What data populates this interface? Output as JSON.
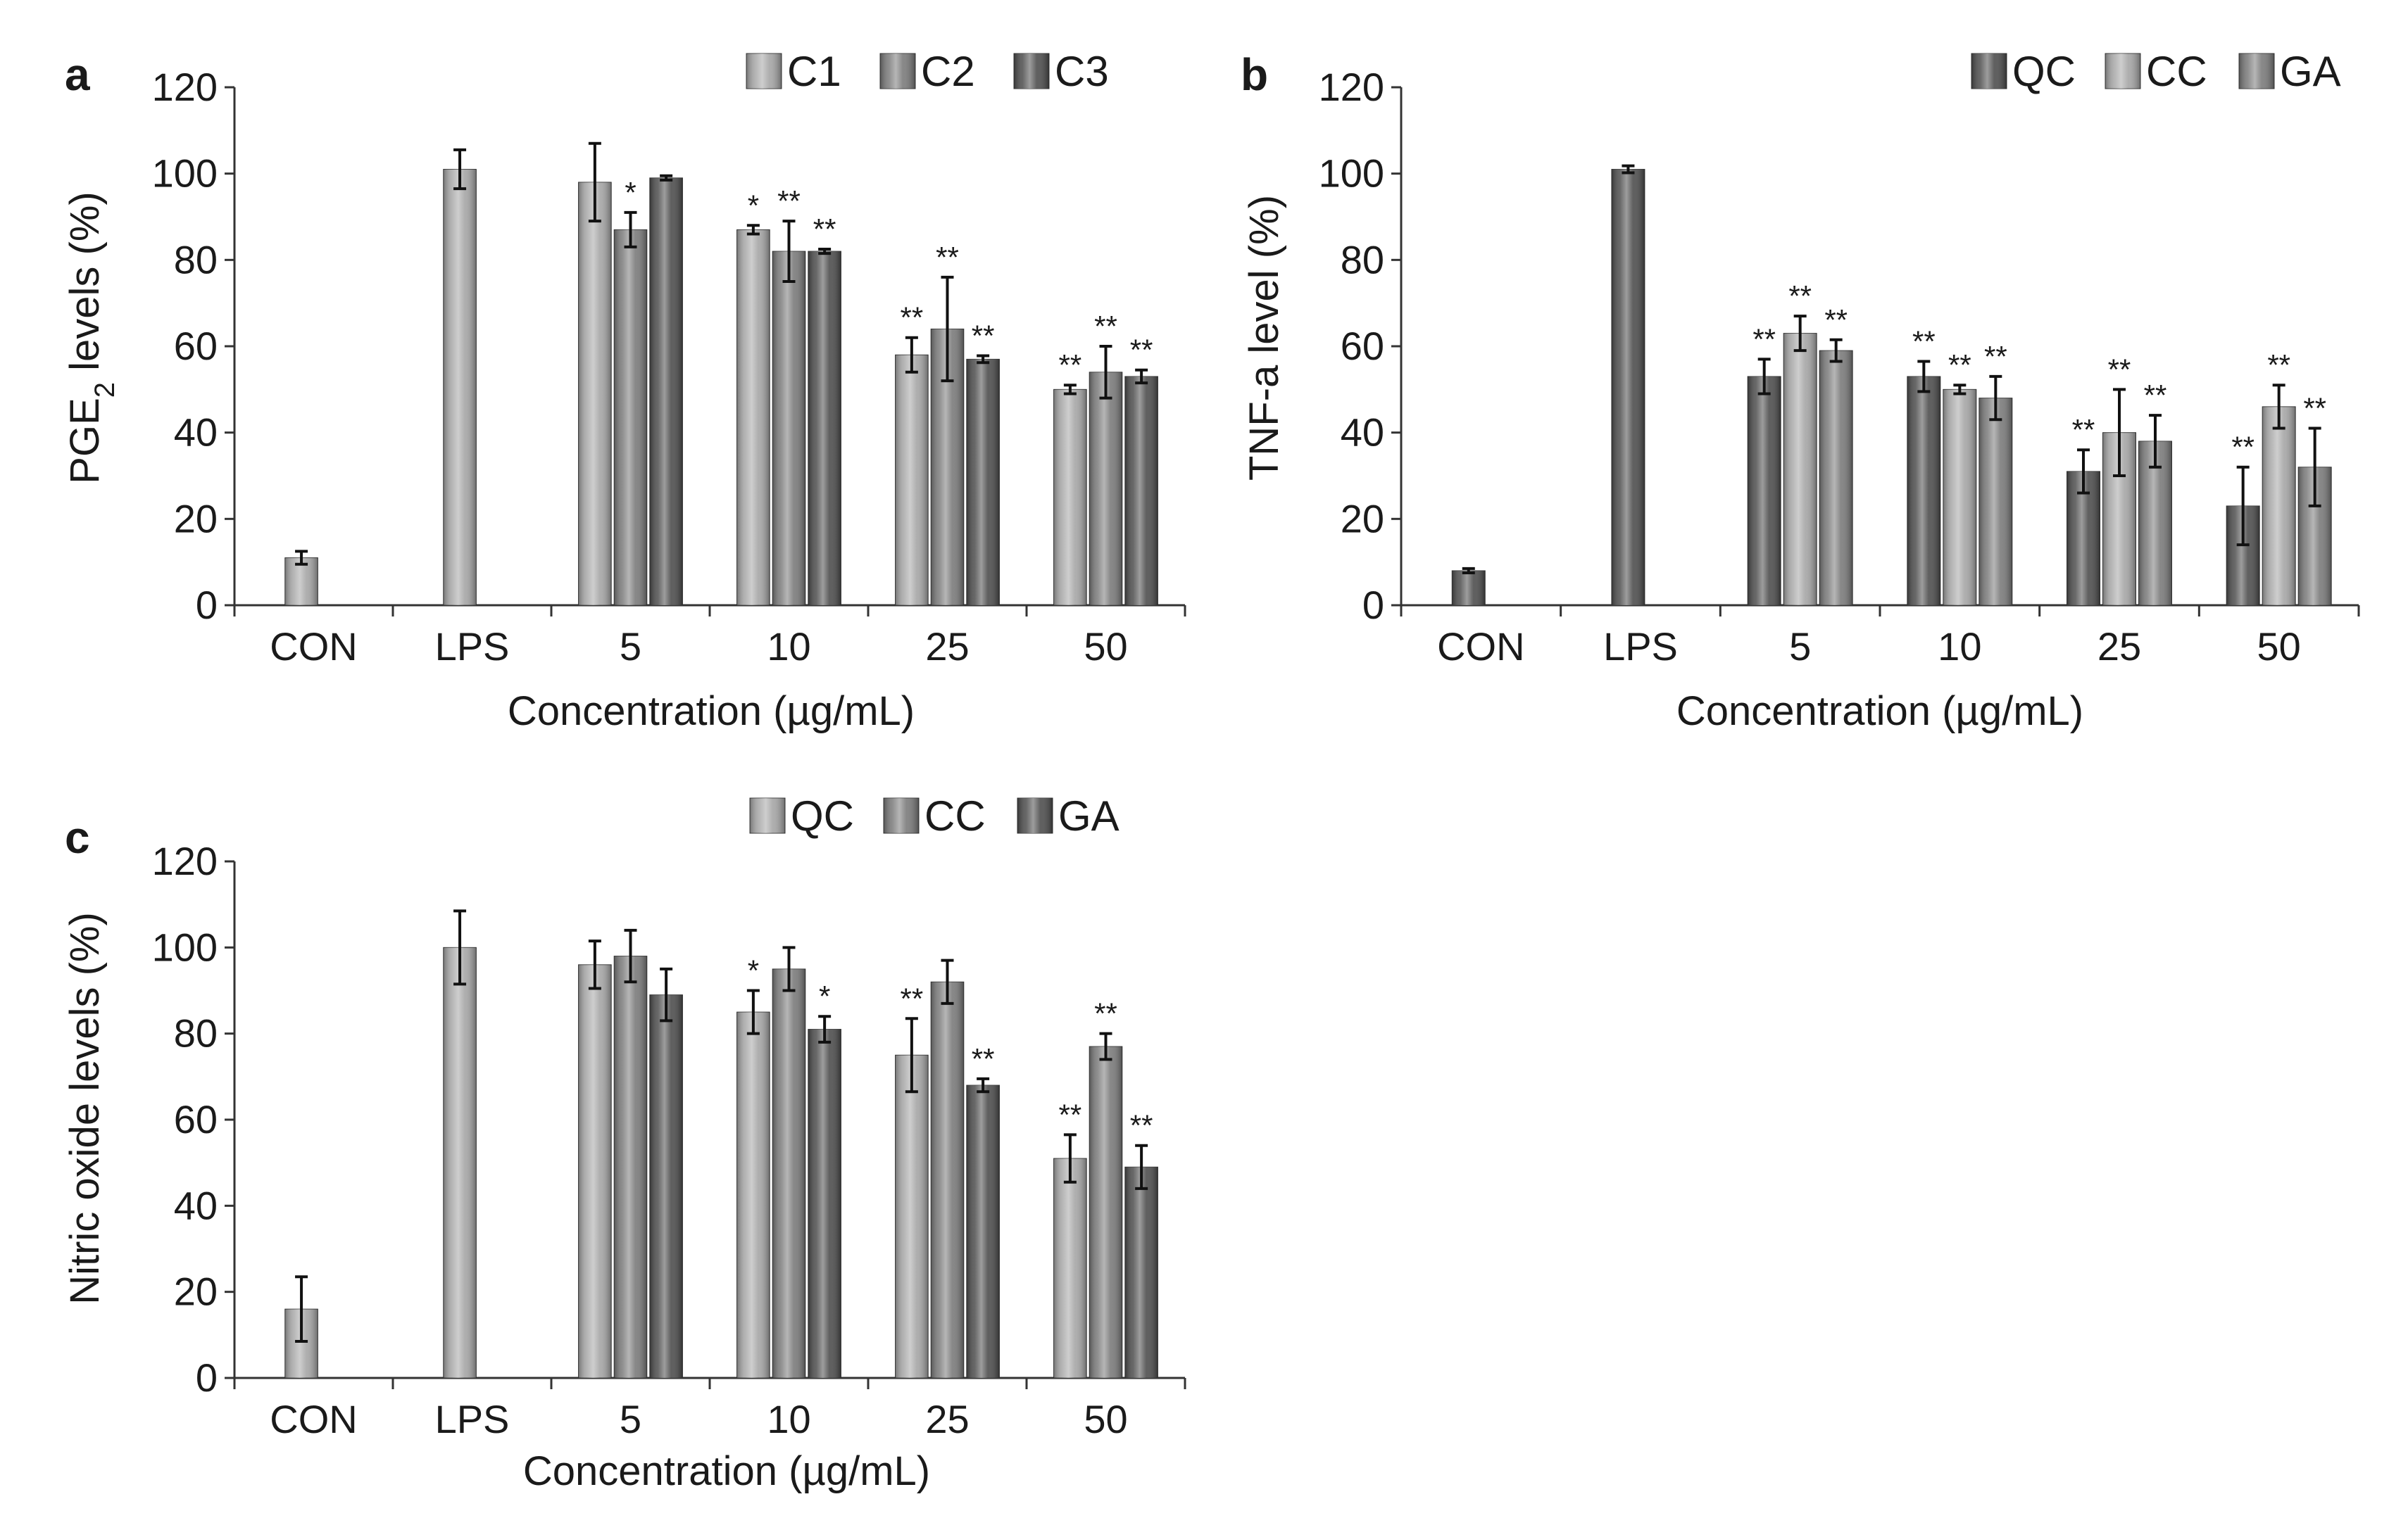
{
  "figure": {
    "panels": [
      {
        "letter": "a",
        "ylabel_main": "PGE",
        "ylabel_sub": "2",
        "ylabel_rest": " levels (%)",
        "xlabel": "Concentration (µg/mL)",
        "legend": [
          "C1",
          "C2",
          "C3"
        ]
      },
      {
        "letter": "b",
        "ylabel_main": "TNF-a level (%)",
        "ylabel_sub": "",
        "ylabel_rest": "",
        "xlabel": "Concentration (µg/mL)",
        "legend": [
          "QC",
          "CC",
          "GA"
        ]
      },
      {
        "letter": "c",
        "ylabel_main": "Nitric oxide levels (%)",
        "ylabel_sub": "",
        "ylabel_rest": "",
        "xlabel": "Concentration (µg/mL)",
        "legend": [
          "QC",
          "CC",
          "GA"
        ]
      }
    ]
  },
  "chart_data": [
    {
      "type": "bar",
      "panel": "a",
      "categories": [
        "CON",
        "LPS",
        "5",
        "10",
        "25",
        "50"
      ],
      "ylim": [
        0,
        120
      ],
      "yticks": [
        0,
        20,
        40,
        60,
        80,
        100,
        120
      ],
      "series": [
        {
          "name": "C1",
          "color": "#a6a6a6",
          "values": [
            11,
            101,
            98,
            87,
            58,
            50
          ],
          "errors": [
            1.5,
            4.5,
            9,
            1,
            4,
            1
          ],
          "stars": [
            "",
            "",
            "",
            "*",
            "**",
            "**"
          ]
        },
        {
          "name": "C2",
          "color": "#7a7a7a",
          "values": [
            null,
            null,
            87,
            82,
            64,
            54
          ],
          "errors": [
            null,
            null,
            4,
            7,
            12,
            6
          ],
          "stars": [
            "",
            "",
            "*",
            "**",
            "**",
            "**"
          ]
        },
        {
          "name": "C3",
          "color": "#4d4d4d",
          "values": [
            null,
            null,
            99,
            82,
            57,
            53
          ],
          "errors": [
            null,
            null,
            0.5,
            0.5,
            0.8,
            1.5
          ],
          "stars": [
            "",
            "",
            "",
            "**",
            "**",
            "**"
          ]
        }
      ]
    },
    {
      "type": "bar",
      "panel": "b",
      "categories": [
        "CON",
        "LPS",
        "5",
        "10",
        "25",
        "50"
      ],
      "ylim": [
        0,
        120
      ],
      "yticks": [
        0,
        20,
        40,
        60,
        80,
        100,
        120
      ],
      "series": [
        {
          "name": "QC",
          "color": "#4d4d4d",
          "values": [
            8,
            101,
            53,
            53,
            31,
            23
          ],
          "errors": [
            0.5,
            0.8,
            4,
            3.5,
            5,
            9
          ],
          "stars": [
            "",
            "",
            "**",
            "**",
            "**",
            "**"
          ]
        },
        {
          "name": "CC",
          "color": "#a6a6a6",
          "values": [
            null,
            null,
            63,
            50,
            40,
            46
          ],
          "errors": [
            null,
            null,
            4,
            1,
            10,
            5
          ],
          "stars": [
            "",
            "",
            "**",
            "**",
            "**",
            "**"
          ]
        },
        {
          "name": "GA",
          "color": "#7a7a7a",
          "values": [
            null,
            null,
            59,
            48,
            38,
            32
          ],
          "errors": [
            null,
            null,
            2.5,
            5,
            6,
            9
          ],
          "stars": [
            "",
            "",
            "**",
            "**",
            "**",
            "**"
          ]
        }
      ]
    },
    {
      "type": "bar",
      "panel": "c",
      "categories": [
        "CON",
        "LPS",
        "5",
        "10",
        "25",
        "50"
      ],
      "ylim": [
        0,
        120
      ],
      "yticks": [
        0,
        20,
        40,
        60,
        80,
        100,
        120
      ],
      "series": [
        {
          "name": "QC",
          "color": "#a6a6a6",
          "values": [
            16,
            100,
            96,
            85,
            75,
            51
          ],
          "errors": [
            7.5,
            8.5,
            5.5,
            5,
            8.5,
            5.5
          ],
          "stars": [
            "",
            "",
            "",
            "*",
            "**",
            "**"
          ]
        },
        {
          "name": "CC",
          "color": "#7a7a7a",
          "values": [
            null,
            null,
            98,
            95,
            92,
            77
          ],
          "errors": [
            null,
            null,
            6,
            5,
            5,
            3
          ],
          "stars": [
            "",
            "",
            "",
            "",
            "",
            "**"
          ]
        },
        {
          "name": "GA",
          "color": "#4d4d4d",
          "values": [
            null,
            null,
            89,
            81,
            68,
            49
          ],
          "errors": [
            null,
            null,
            6,
            3,
            1.5,
            5
          ],
          "stars": [
            "",
            "",
            "",
            "*",
            "**",
            "**"
          ]
        }
      ]
    }
  ]
}
